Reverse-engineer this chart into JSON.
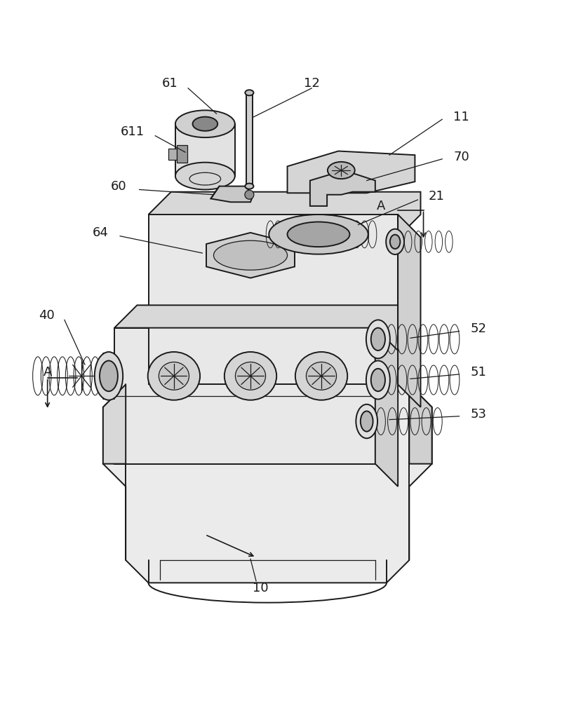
{
  "background_color": "#ffffff",
  "line_color": "#1a1a1a",
  "label_color": "#1a1a1a",
  "fig_width": 8.11,
  "fig_height": 10.0
}
